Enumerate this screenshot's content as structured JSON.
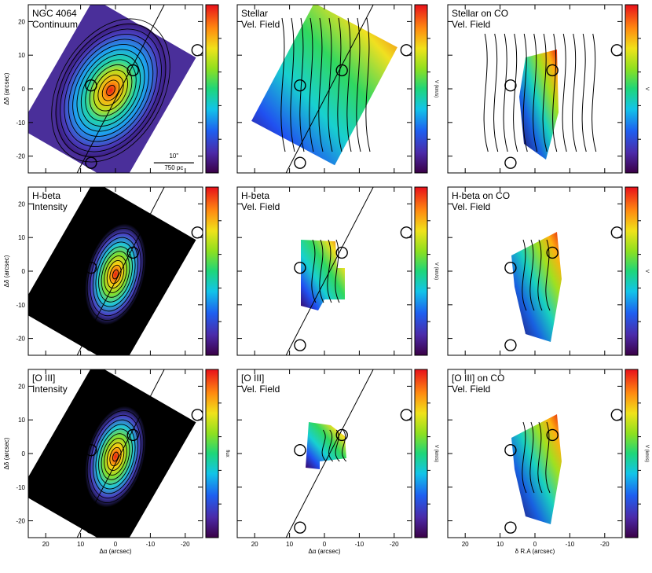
{
  "figure": {
    "scale_bar": {
      "top": "10\"",
      "bottom": "750 pc"
    },
    "colorbar_ticks": {
      "panel_1": [
        "",
        "",
        "",
        ""
      ],
      "panel_4": [
        "",
        "",
        "",
        ""
      ],
      "panel_7": [
        "",
        "",
        "",
        ""
      ]
    },
    "colorbar_labels": {
      "panel_2": "V (km/s)",
      "panel_3": "V",
      "panel_4": "",
      "panel_5": "V (km/s)",
      "panel_6": "V",
      "panel_7": "flux",
      "panel_8": "V (km/s)",
      "panel_9": "V (km/s)"
    }
  },
  "chart_data": [
    {
      "type": "heatmap",
      "title": "NGC 4064 Continuum",
      "title_lines": [
        "NGC 4064",
        "Continuum"
      ],
      "ylabel": "Δδ (arcsec)",
      "xlabel": "",
      "yticks": [
        "20",
        "10",
        "0",
        "-10",
        "-20"
      ],
      "xticks": [],
      "colormap": "rainbow",
      "overlay": "contours"
    },
    {
      "type": "heatmap",
      "title": "Stellar Vel. Field",
      "title_lines": [
        "Stellar",
        "Vel. Field"
      ],
      "yticks": [],
      "xticks": [],
      "colormap": "rainbow",
      "overlay": "isovelocity contours"
    },
    {
      "type": "heatmap",
      "title": "Stellar on CO Vel. Field",
      "title_lines": [
        "Stellar on CO",
        "Vel. Field"
      ],
      "yticks": [],
      "xticks": [],
      "colormap": "rainbow",
      "overlay": "contours"
    },
    {
      "type": "heatmap",
      "title": "H-beta Intensity",
      "title_lines": [
        "H-beta",
        "Intensity"
      ],
      "ylabel": "Δδ (arcsec)",
      "yticks": [
        "20",
        "10",
        "0",
        "-10",
        "-20"
      ],
      "xticks": [],
      "colormap": "rainbow",
      "overlay": "contours"
    },
    {
      "type": "heatmap",
      "title": "H-beta Vel. Field",
      "title_lines": [
        "H-beta",
        "Vel. Field"
      ],
      "yticks": [],
      "xticks": [],
      "colormap": "rainbow",
      "overlay": "contours"
    },
    {
      "type": "heatmap",
      "title": "H-beta on CO Vel. Field",
      "title_lines": [
        "H-beta on CO",
        "Vel. Field"
      ],
      "yticks": [],
      "xticks": [],
      "colormap": "rainbow",
      "overlay": "contours"
    },
    {
      "type": "heatmap",
      "title": "[O III] Intensity",
      "title_lines": [
        "[O III]",
        "Intensity"
      ],
      "ylabel": "Δδ (arcsec)",
      "xlabel": "Δα (arcsec)",
      "yticks": [
        "20",
        "10",
        "0",
        "-10",
        "-20"
      ],
      "xticks": [
        "20",
        "10",
        "0",
        "-10",
        "-20"
      ],
      "colormap": "rainbow",
      "overlay": "contours"
    },
    {
      "type": "heatmap",
      "title": "[O III] Vel. Field",
      "title_lines": [
        "[O III]",
        "Vel. Field"
      ],
      "xlabel": "Δα (arcsec)",
      "yticks": [],
      "xticks": [
        "20",
        "10",
        "0",
        "-10",
        "-20"
      ],
      "colormap": "rainbow",
      "overlay": "contours"
    },
    {
      "type": "heatmap",
      "title": "[O III] on CO Vel. Field",
      "title_lines": [
        "[O III] on CO",
        "Vel. Field"
      ],
      "xlabel": "δ R.A (arcsec)",
      "yticks": [],
      "xticks": [
        "20",
        "10",
        "0",
        "-10",
        "-20"
      ],
      "colormap": "rainbow",
      "overlay": "contours"
    }
  ]
}
